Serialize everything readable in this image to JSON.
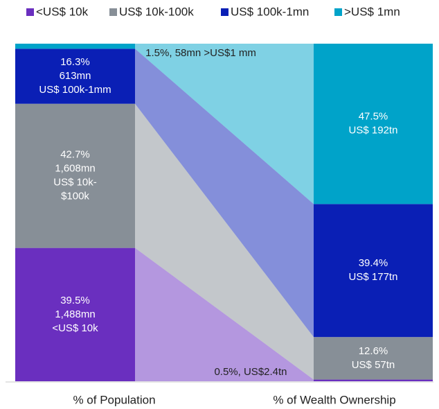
{
  "chart_data": {
    "type": "stacked_bar_flow",
    "categories": [
      "% of Population",
      "% of Wealth Ownership"
    ],
    "series": [
      {
        "name": "<US$ 10k",
        "color": "#6a2fbf",
        "values": [
          39.5,
          0.5
        ],
        "value_labels": [
          [
            "39.5%",
            "1,488mn",
            "<US$ 10k"
          ],
          [
            "0.5%, US$2.4tn"
          ]
        ]
      },
      {
        "name": "US$ 10k-100k",
        "color": "#878f97",
        "values": [
          42.7,
          12.6
        ],
        "value_labels": [
          [
            "42.7%",
            "1,608mn",
            "US$ 10k-",
            "$100k"
          ],
          [
            "12.6%",
            "US$ 57tn"
          ]
        ]
      },
      {
        "name": "US$ 100k-1mn",
        "color": "#0a1fb5",
        "values": [
          16.3,
          39.4
        ],
        "value_labels": [
          [
            "16.3%",
            "613mn",
            "US$ 100k-1mm"
          ],
          [
            "39.4%",
            "US$ 177tn"
          ]
        ]
      },
      {
        "name": ">US$ 1mn",
        "color": "#00a3c9",
        "values": [
          1.5,
          47.5
        ],
        "value_labels": [
          [
            "1.5%, 58mn >US$1 mm"
          ],
          [
            "47.5%",
            "US$ 192tn"
          ]
        ]
      }
    ]
  }
}
